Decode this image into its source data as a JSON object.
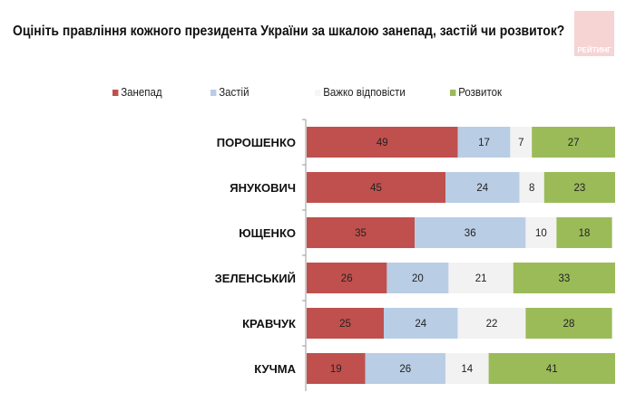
{
  "chart_data": {
    "type": "bar",
    "orientation": "horizontal",
    "stacked": true,
    "title": "Оцініть правління кожного президента України за шкалою занепад, застій чи розвиток?",
    "categories": [
      "ПОРОШЕНКО",
      "ЯНУКОВИЧ",
      "ЮЩЕНКО",
      "ЗЕЛЕНСЬКИЙ",
      "КРАВЧУК",
      "КУЧМА"
    ],
    "series": [
      {
        "name": "Занепад",
        "color": "#c0504d",
        "values": [
          49,
          45,
          35,
          26,
          25,
          19
        ]
      },
      {
        "name": "Застій",
        "color": "#b9cde5",
        "values": [
          17,
          24,
          36,
          20,
          24,
          26
        ]
      },
      {
        "name": "Важко відповісти",
        "color": "#f2f2f2",
        "values": [
          7,
          8,
          10,
          21,
          22,
          14
        ]
      },
      {
        "name": "Розвиток",
        "color": "#9bbb59",
        "values": [
          27,
          23,
          18,
          33,
          28,
          41
        ]
      }
    ],
    "xlim": [
      0,
      100
    ],
    "legend": "top",
    "grid": false
  },
  "logo_text": "РЕЙТИНГ"
}
